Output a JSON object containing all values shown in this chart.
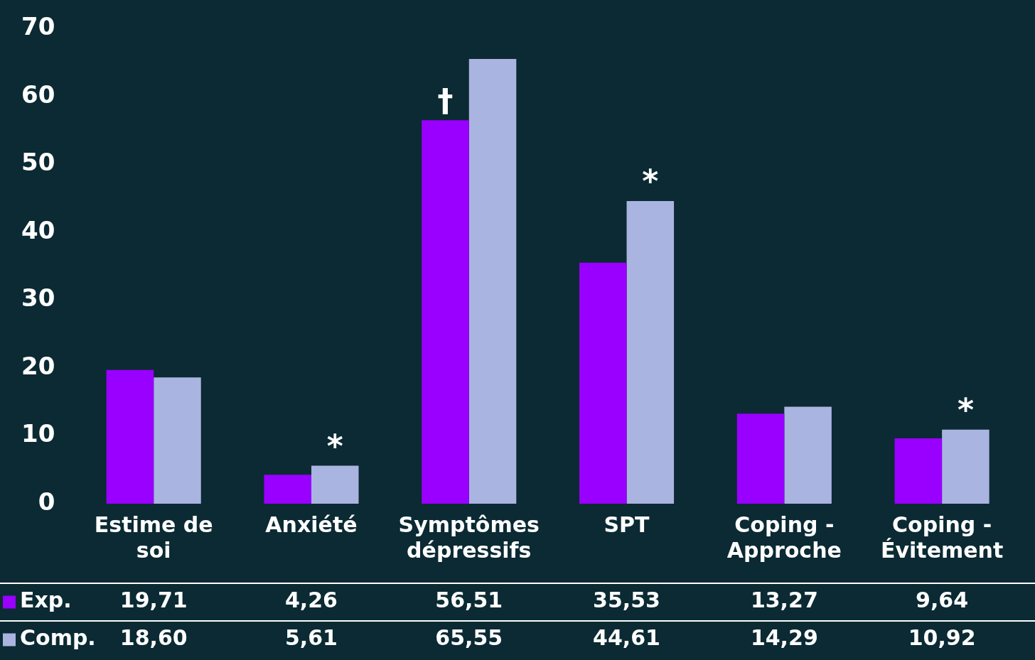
{
  "chart_data": {
    "type": "bar",
    "categories": [
      "Estime de soi",
      "Anxiété",
      "Symptômes dépressifs",
      "SPT",
      "Coping - Approche",
      "Coping - Évitement"
    ],
    "series": [
      {
        "name": "Exp.",
        "color": "#9900ff",
        "values": [
          19.71,
          4.26,
          56.51,
          35.53,
          13.27,
          9.64
        ],
        "value_labels": [
          "19,71",
          "4,26",
          "56,51",
          "35,53",
          "13,27",
          "9,64"
        ]
      },
      {
        "name": "Comp.",
        "color": "#aab4e0",
        "values": [
          18.6,
          5.61,
          65.55,
          44.61,
          14.29,
          10.92
        ],
        "value_labels": [
          "18,60",
          "5,61",
          "65,55",
          "44,61",
          "14,29",
          "10,92"
        ]
      }
    ],
    "ylim": [
      0,
      70
    ],
    "yticks": [
      0,
      10,
      20,
      30,
      40,
      50,
      60,
      70
    ],
    "grid": false,
    "legend": "bottom left",
    "annotations": [
      {
        "text": "*",
        "x": "Anxiété",
        "y": 5.61
      },
      {
        "text": "†",
        "x": "Symptômes dépressifs",
        "y": 56.51
      },
      {
        "text": "*",
        "x": "SPT",
        "y": 44.61
      },
      {
        "text": "*",
        "x": "Coping - Évitement",
        "y": 10.92
      }
    ]
  }
}
